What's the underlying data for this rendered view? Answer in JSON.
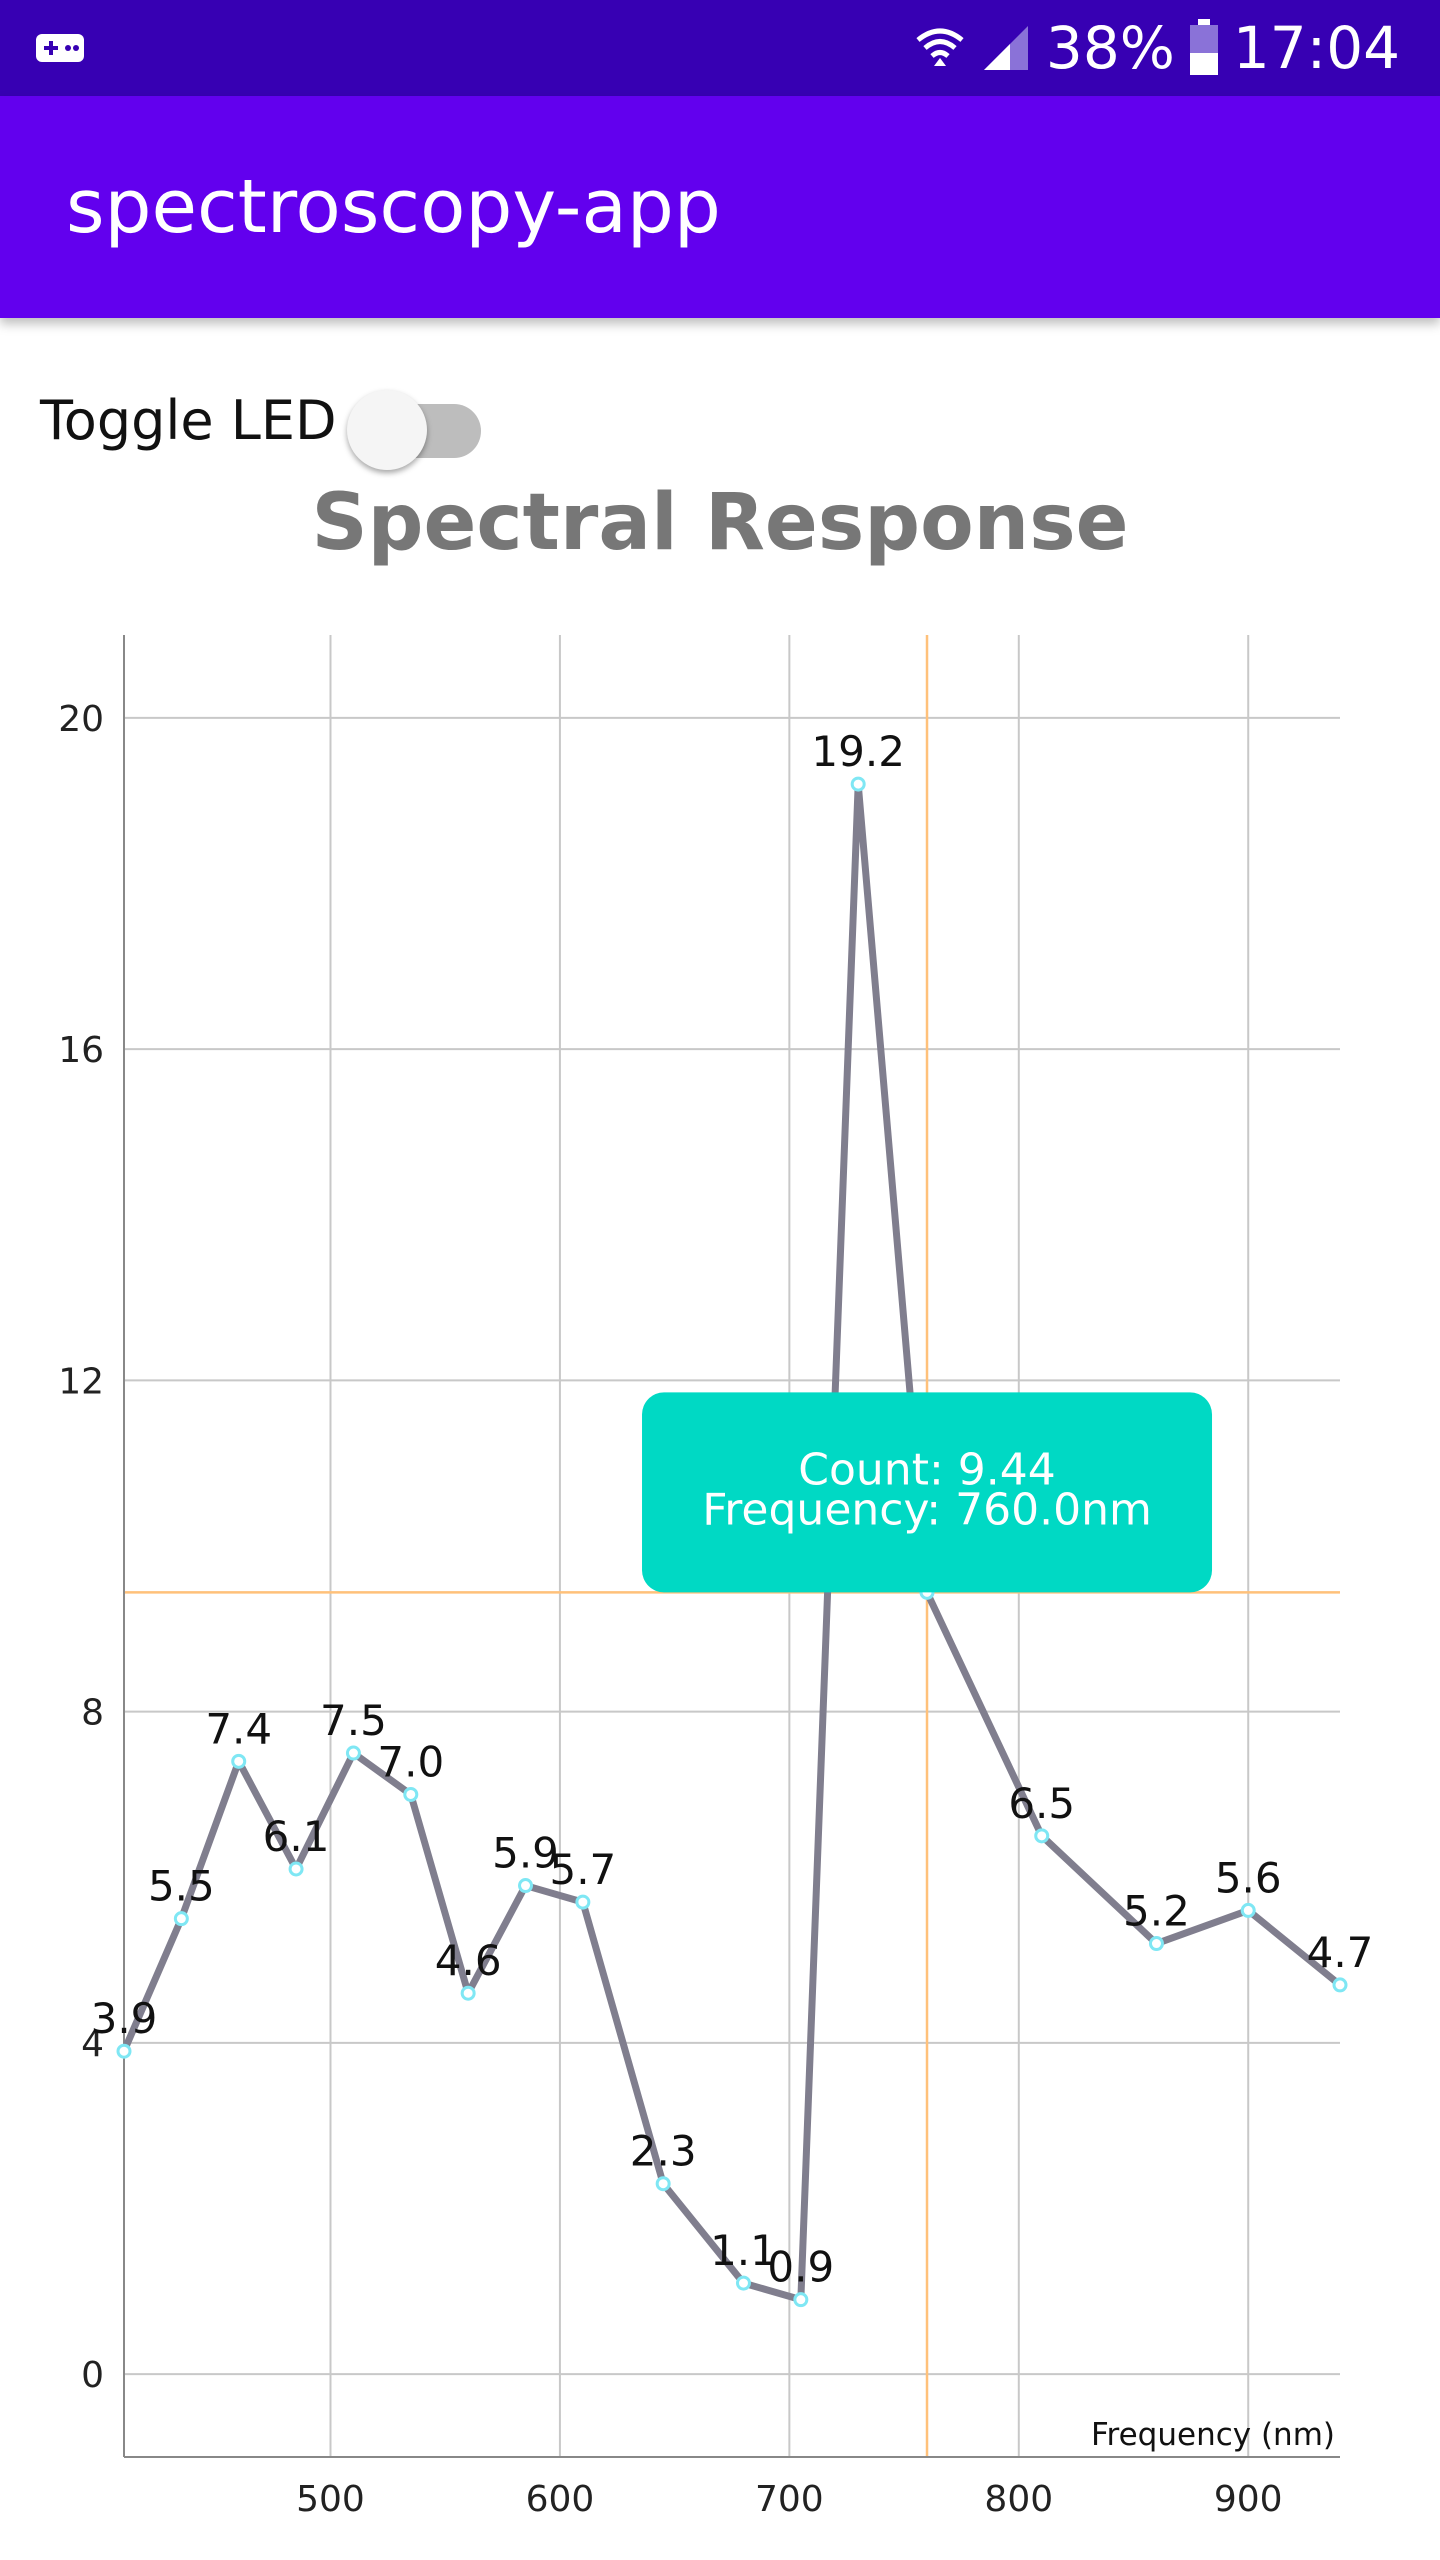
{
  "status_bar": {
    "app_icon": "gamepad-icon",
    "wifi_icon": "wifi-icon",
    "signal_icon": "signal-icon",
    "battery_icon": "battery-icon",
    "battery": "38%",
    "time": "17:04"
  },
  "app_bar": {
    "title": "spectroscopy-app"
  },
  "toggle": {
    "label": "Toggle LED",
    "on": false
  },
  "chart_data": {
    "type": "line",
    "title": "Spectral Response",
    "xlabel": "Frequency (nm)",
    "ylabel": "",
    "xlim": [
      410,
      940
    ],
    "ylim": [
      -1,
      21
    ],
    "x_ticks": [
      500,
      600,
      700,
      800,
      900
    ],
    "y_ticks": [
      0,
      4,
      8,
      12,
      16,
      20
    ],
    "grid": true,
    "series": [
      {
        "color": "#807e8e",
        "points": [
          {
            "x": 410,
            "y": 3.9,
            "label": "3.9"
          },
          {
            "x": 435,
            "y": 5.5,
            "label": "5.5"
          },
          {
            "x": 460,
            "y": 7.4,
            "label": "7.4"
          },
          {
            "x": 485,
            "y": 6.1,
            "label": "6.1"
          },
          {
            "x": 510,
            "y": 7.5,
            "label": "7.5"
          },
          {
            "x": 535,
            "y": 7.0,
            "label": "7.0"
          },
          {
            "x": 560,
            "y": 4.6,
            "label": "4.6"
          },
          {
            "x": 585,
            "y": 5.9,
            "label": "5.9"
          },
          {
            "x": 610,
            "y": 5.7,
            "label": "5.7"
          },
          {
            "x": 645,
            "y": 2.3,
            "label": "2.3"
          },
          {
            "x": 680,
            "y": 1.1,
            "label": "1.1"
          },
          {
            "x": 705,
            "y": 0.9,
            "label": "0.9"
          },
          {
            "x": 730,
            "y": 19.2,
            "label": "19.2"
          },
          {
            "x": 760,
            "y": 9.44,
            "label": ""
          },
          {
            "x": 810,
            "y": 6.5,
            "label": "6.5"
          },
          {
            "x": 860,
            "y": 5.2,
            "label": "5.2"
          },
          {
            "x": 900,
            "y": 5.6,
            "label": "5.6"
          },
          {
            "x": 940,
            "y": 4.7,
            "label": "4.7"
          }
        ]
      }
    ],
    "highlight": {
      "x": 760,
      "y": 9.44,
      "tooltip_line1": "Count: 9.44",
      "tooltip_line2": "Frequency: 760.0nm",
      "tooltip_color": "#00d9c4",
      "crosshair_color": "#ffc17a"
    },
    "point_color": "#7fe7f4",
    "grid_color": "#c8c8c8"
  }
}
